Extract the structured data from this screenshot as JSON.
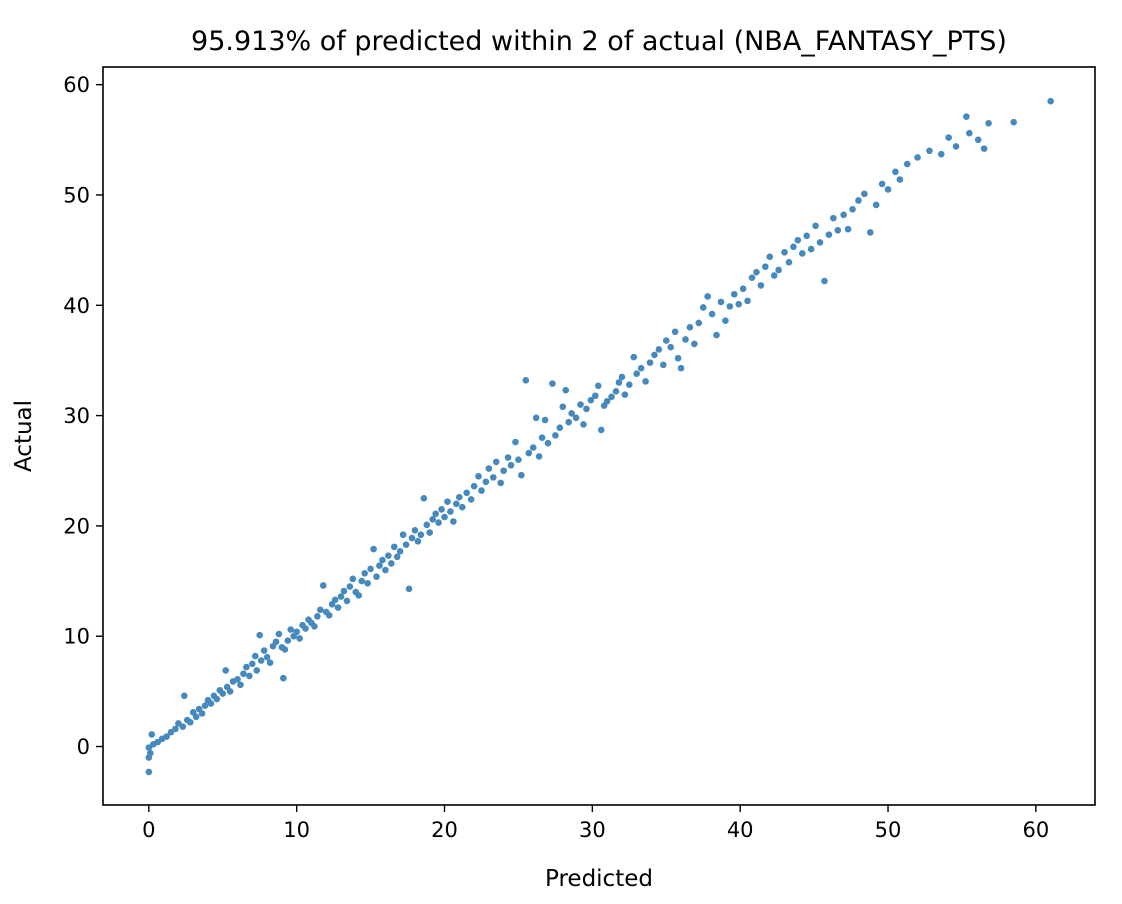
{
  "chart_data": {
    "type": "scatter",
    "title": "95.913% of predicted within 2 of actual (NBA_FANTASY_PTS)",
    "xlabel": "Predicted",
    "ylabel": "Actual",
    "xlim": [
      -3.1,
      64.0
    ],
    "ylim": [
      -5.3,
      61.6
    ],
    "xticks": [
      0,
      10,
      20,
      30,
      40,
      50,
      60
    ],
    "yticks": [
      0,
      10,
      20,
      30,
      40,
      50,
      60
    ],
    "grid": false,
    "color": "#4689BD",
    "series": [
      {
        "points": [
          [
            0.0,
            -2.3
          ],
          [
            0.0,
            -1.0
          ],
          [
            0.1,
            -0.6
          ],
          [
            0.0,
            -0.1
          ],
          [
            0.3,
            0.2
          ],
          [
            0.2,
            1.1
          ],
          [
            0.6,
            0.4
          ],
          [
            0.9,
            0.7
          ],
          [
            1.2,
            0.9
          ],
          [
            1.5,
            1.3
          ],
          [
            1.8,
            1.6
          ],
          [
            2.0,
            2.1
          ],
          [
            2.3,
            1.8
          ],
          [
            2.4,
            4.6
          ],
          [
            2.6,
            2.4
          ],
          [
            2.8,
            2.2
          ],
          [
            3.0,
            3.1
          ],
          [
            3.2,
            2.7
          ],
          [
            3.4,
            3.4
          ],
          [
            3.6,
            3.0
          ],
          [
            3.8,
            3.7
          ],
          [
            4.0,
            4.2
          ],
          [
            4.2,
            3.9
          ],
          [
            4.4,
            4.6
          ],
          [
            4.6,
            4.3
          ],
          [
            4.8,
            5.1
          ],
          [
            5.0,
            4.8
          ],
          [
            5.2,
            6.9
          ],
          [
            5.3,
            5.4
          ],
          [
            5.5,
            5.0
          ],
          [
            5.7,
            5.9
          ],
          [
            6.0,
            6.1
          ],
          [
            6.2,
            5.6
          ],
          [
            6.4,
            6.6
          ],
          [
            6.6,
            7.2
          ],
          [
            6.8,
            6.4
          ],
          [
            7.0,
            7.5
          ],
          [
            7.2,
            8.2
          ],
          [
            7.3,
            6.9
          ],
          [
            7.5,
            10.1
          ],
          [
            7.6,
            7.8
          ],
          [
            7.8,
            8.7
          ],
          [
            8.0,
            8.1
          ],
          [
            8.2,
            7.6
          ],
          [
            8.4,
            9.1
          ],
          [
            8.6,
            9.5
          ],
          [
            8.8,
            10.2
          ],
          [
            9.0,
            9.0
          ],
          [
            9.1,
            6.2
          ],
          [
            9.2,
            8.8
          ],
          [
            9.4,
            9.6
          ],
          [
            9.6,
            10.6
          ],
          [
            9.8,
            10.0
          ],
          [
            10.0,
            10.4
          ],
          [
            10.2,
            9.8
          ],
          [
            10.4,
            11.0
          ],
          [
            10.6,
            10.7
          ],
          [
            10.8,
            11.5
          ],
          [
            11.0,
            11.2
          ],
          [
            11.2,
            10.9
          ],
          [
            11.4,
            11.8
          ],
          [
            11.6,
            12.4
          ],
          [
            11.8,
            14.6
          ],
          [
            12.0,
            12.2
          ],
          [
            12.2,
            11.9
          ],
          [
            12.4,
            12.9
          ],
          [
            12.6,
            13.3
          ],
          [
            12.8,
            12.6
          ],
          [
            13.0,
            13.6
          ],
          [
            13.2,
            14.1
          ],
          [
            13.4,
            13.2
          ],
          [
            13.6,
            14.5
          ],
          [
            13.8,
            15.2
          ],
          [
            14.0,
            14.0
          ],
          [
            14.2,
            13.7
          ],
          [
            14.4,
            15.0
          ],
          [
            14.6,
            15.7
          ],
          [
            14.8,
            14.8
          ],
          [
            15.0,
            16.1
          ],
          [
            15.2,
            17.9
          ],
          [
            15.4,
            15.4
          ],
          [
            15.6,
            16.4
          ],
          [
            15.8,
            16.9
          ],
          [
            16.0,
            16.0
          ],
          [
            16.2,
            17.3
          ],
          [
            16.4,
            16.6
          ],
          [
            16.6,
            18.1
          ],
          [
            16.8,
            17.2
          ],
          [
            17.0,
            17.7
          ],
          [
            17.2,
            19.2
          ],
          [
            17.4,
            18.3
          ],
          [
            17.6,
            14.3
          ],
          [
            17.8,
            18.9
          ],
          [
            18.0,
            19.6
          ],
          [
            18.2,
            18.6
          ],
          [
            18.4,
            19.2
          ],
          [
            18.6,
            22.5
          ],
          [
            18.8,
            20.1
          ],
          [
            19.0,
            19.4
          ],
          [
            19.2,
            20.6
          ],
          [
            19.4,
            21.1
          ],
          [
            19.6,
            20.3
          ],
          [
            19.8,
            21.5
          ],
          [
            20.0,
            20.8
          ],
          [
            20.2,
            22.2
          ],
          [
            20.4,
            21.3
          ],
          [
            20.6,
            20.4
          ],
          [
            20.8,
            22.0
          ],
          [
            21.0,
            22.6
          ],
          [
            21.2,
            21.7
          ],
          [
            21.5,
            23.0
          ],
          [
            21.8,
            22.4
          ],
          [
            22.0,
            23.6
          ],
          [
            22.3,
            24.5
          ],
          [
            22.5,
            23.2
          ],
          [
            22.8,
            24.0
          ],
          [
            23.0,
            25.2
          ],
          [
            23.3,
            24.4
          ],
          [
            23.5,
            25.8
          ],
          [
            23.8,
            23.9
          ],
          [
            24.0,
            25.0
          ],
          [
            24.3,
            26.2
          ],
          [
            24.5,
            25.5
          ],
          [
            24.8,
            27.6
          ],
          [
            25.0,
            26.0
          ],
          [
            25.2,
            24.6
          ],
          [
            25.5,
            33.2
          ],
          [
            25.7,
            26.6
          ],
          [
            26.0,
            27.1
          ],
          [
            26.2,
            29.8
          ],
          [
            26.4,
            26.3
          ],
          [
            26.6,
            28.0
          ],
          [
            26.8,
            29.6
          ],
          [
            27.0,
            27.5
          ],
          [
            27.3,
            32.9
          ],
          [
            27.5,
            28.2
          ],
          [
            27.8,
            28.9
          ],
          [
            28.0,
            30.8
          ],
          [
            28.2,
            32.3
          ],
          [
            28.4,
            29.4
          ],
          [
            28.6,
            30.2
          ],
          [
            28.9,
            29.8
          ],
          [
            29.2,
            31.0
          ],
          [
            29.4,
            29.2
          ],
          [
            29.6,
            30.6
          ],
          [
            29.9,
            31.4
          ],
          [
            30.2,
            31.8
          ],
          [
            30.4,
            32.7
          ],
          [
            30.6,
            28.7
          ],
          [
            30.8,
            30.9
          ],
          [
            31.0,
            31.3
          ],
          [
            31.3,
            31.7
          ],
          [
            31.6,
            32.2
          ],
          [
            31.8,
            33.0
          ],
          [
            32.0,
            33.5
          ],
          [
            32.2,
            31.9
          ],
          [
            32.5,
            32.8
          ],
          [
            32.8,
            35.3
          ],
          [
            33.0,
            33.8
          ],
          [
            33.3,
            34.3
          ],
          [
            33.6,
            33.1
          ],
          [
            33.9,
            34.8
          ],
          [
            34.2,
            35.5
          ],
          [
            34.5,
            36.0
          ],
          [
            34.8,
            34.6
          ],
          [
            35.0,
            36.8
          ],
          [
            35.3,
            36.2
          ],
          [
            35.6,
            37.6
          ],
          [
            35.8,
            35.2
          ],
          [
            36.0,
            34.3
          ],
          [
            36.3,
            36.9
          ],
          [
            36.6,
            38.0
          ],
          [
            36.9,
            36.5
          ],
          [
            37.2,
            38.4
          ],
          [
            37.5,
            39.8
          ],
          [
            37.8,
            40.8
          ],
          [
            38.1,
            39.2
          ],
          [
            38.4,
            37.3
          ],
          [
            38.7,
            40.3
          ],
          [
            39.0,
            38.6
          ],
          [
            39.3,
            39.9
          ],
          [
            39.6,
            41.0
          ],
          [
            39.9,
            40.1
          ],
          [
            40.2,
            41.5
          ],
          [
            40.5,
            40.4
          ],
          [
            40.8,
            42.5
          ],
          [
            41.1,
            43.0
          ],
          [
            41.4,
            41.8
          ],
          [
            41.7,
            43.5
          ],
          [
            42.0,
            44.4
          ],
          [
            42.3,
            42.7
          ],
          [
            42.6,
            43.2
          ],
          [
            43.0,
            44.8
          ],
          [
            43.3,
            43.9
          ],
          [
            43.6,
            45.3
          ],
          [
            43.9,
            45.9
          ],
          [
            44.2,
            44.7
          ],
          [
            44.5,
            46.3
          ],
          [
            44.8,
            45.1
          ],
          [
            45.1,
            47.2
          ],
          [
            45.4,
            45.7
          ],
          [
            45.7,
            42.2
          ],
          [
            46.0,
            46.4
          ],
          [
            46.3,
            47.9
          ],
          [
            46.6,
            46.8
          ],
          [
            47.0,
            48.2
          ],
          [
            47.3,
            46.9
          ],
          [
            47.6,
            48.7
          ],
          [
            48.0,
            49.5
          ],
          [
            48.4,
            50.1
          ],
          [
            48.8,
            46.6
          ],
          [
            49.2,
            49.1
          ],
          [
            49.6,
            51.0
          ],
          [
            50.0,
            50.5
          ],
          [
            50.5,
            52.1
          ],
          [
            50.8,
            51.4
          ],
          [
            51.3,
            52.8
          ],
          [
            52.0,
            53.4
          ],
          [
            52.8,
            54.0
          ],
          [
            53.6,
            53.7
          ],
          [
            54.1,
            55.2
          ],
          [
            54.6,
            54.4
          ],
          [
            55.3,
            57.1
          ],
          [
            55.5,
            55.6
          ],
          [
            56.1,
            55.0
          ],
          [
            56.5,
            54.2
          ],
          [
            56.8,
            56.5
          ],
          [
            58.5,
            56.6
          ],
          [
            61.0,
            58.5
          ]
        ]
      }
    ]
  }
}
